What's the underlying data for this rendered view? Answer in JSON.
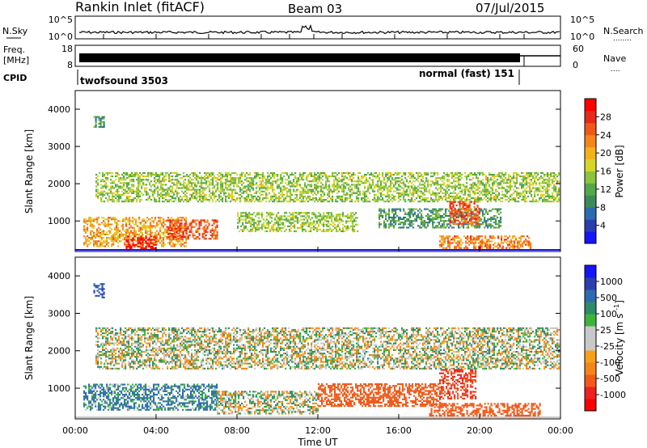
{
  "header": {
    "station": "Rankin Inlet (fitACF)",
    "beam": "Beam 03",
    "date": "07/Jul/2015"
  },
  "nsky_panel": {
    "left_label": "N.Sky",
    "right_label": "N.Search",
    "left_ticks": [
      "10^5",
      "10^0"
    ],
    "right_ticks": [
      "10^5",
      "10^0"
    ],
    "right_legend_marker": "........"
  },
  "freq_panel": {
    "left_label_line1": "Freq.",
    "left_label_line2": "[MHz]",
    "right_label": "Nave",
    "left_ticks": [
      "18",
      "8"
    ],
    "right_ticks": [
      "60",
      "0"
    ],
    "right_legend_marker": "...."
  },
  "cpid_panel": {
    "label": "CPID",
    "mode1": "twofsound 3503",
    "mode2": "normal (fast) 151"
  },
  "colors": {
    "background": "#ffffff",
    "power_scale": [
      "#1414ff",
      "#2a3fae",
      "#2d6bb0",
      "#3d8a58",
      "#53a84a",
      "#8dc43c",
      "#d6d62a",
      "#f3b21a",
      "#f5861a",
      "#f0581a",
      "#e8281a",
      "#ff0000"
    ],
    "velocity_scale": [
      "#ff0000",
      "#ee2020",
      "#f05a1a",
      "#f5851a",
      "#f7a01a",
      "#c8c8c8",
      "#c8c8c8",
      "#3cb43c",
      "#2d8a6a",
      "#2d6bb0",
      "#2a3fae",
      "#1414ff"
    ]
  },
  "chart_data": [
    {
      "type": "heatmap",
      "name": "power",
      "ylabel": "Slant Range [km]",
      "xlabel": "",
      "xlim": [
        0,
        24
      ],
      "ylim": [
        180,
        4500
      ],
      "x_ticks": [
        "00:00",
        "04:00",
        "08:00",
        "12:00",
        "16:00",
        "20:00",
        "00:00"
      ],
      "y_ticks": [
        1000,
        2000,
        3000,
        4000
      ],
      "colorbar": {
        "label": "Power [dB]",
        "ticks": [
          "4",
          "8",
          "12",
          "16",
          "20",
          "24",
          "28"
        ],
        "range": [
          0,
          30
        ]
      },
      "bands": [
        {
          "t0": 1.0,
          "t1": 23.9,
          "r0": 1500,
          "r1": 2300,
          "level": 14
        },
        {
          "t0": 0.4,
          "t1": 5.5,
          "r0": 300,
          "r1": 1100,
          "level": 20
        },
        {
          "t0": 2.5,
          "t1": 4.0,
          "r0": 200,
          "r1": 600,
          "level": 28
        },
        {
          "t0": 4.5,
          "t1": 7.0,
          "r0": 500,
          "r1": 1000,
          "level": 24
        },
        {
          "t0": 8.0,
          "t1": 14.0,
          "r0": 700,
          "r1": 1200,
          "level": 14
        },
        {
          "t0": 15.0,
          "t1": 21.0,
          "r0": 800,
          "r1": 1300,
          "level": 10
        },
        {
          "t0": 18.5,
          "t1": 20.0,
          "r0": 900,
          "r1": 1500,
          "level": 24
        },
        {
          "t0": 18.0,
          "t1": 22.5,
          "r0": 250,
          "r1": 600,
          "level": 22
        },
        {
          "t0": 0.9,
          "t1": 1.4,
          "r0": 3500,
          "r1": 3800,
          "level": 10
        }
      ]
    },
    {
      "type": "heatmap",
      "name": "velocity",
      "ylabel": "Slant Range [km]",
      "xlabel": "Time UT",
      "xlim": [
        0,
        24
      ],
      "ylim": [
        180,
        4500
      ],
      "x_ticks": [
        "00:00",
        "04:00",
        "08:00",
        "12:00",
        "16:00",
        "20:00",
        "00:00"
      ],
      "y_ticks": [
        1000,
        2000,
        3000,
        4000
      ],
      "colorbar": {
        "label": "Velocity [m s^-1]",
        "ticks": [
          "-1000",
          "-500",
          "-100",
          "-25",
          "25",
          "100",
          "500",
          "1000"
        ]
      },
      "bands": [
        {
          "t0": 1.0,
          "t1": 23.9,
          "r0": 1500,
          "r1": 2600,
          "value": 0
        },
        {
          "t0": 0.4,
          "t1": 7.0,
          "r0": 400,
          "r1": 1100,
          "value": 100
        },
        {
          "t0": 7.0,
          "t1": 12.0,
          "r0": 300,
          "r1": 900,
          "value": 0
        },
        {
          "t0": 12.0,
          "t1": 18.0,
          "r0": 500,
          "r1": 1100,
          "value": -300
        },
        {
          "t0": 18.0,
          "t1": 19.8,
          "r0": 700,
          "r1": 1500,
          "value": -500
        },
        {
          "t0": 17.5,
          "t1": 23.0,
          "r0": 200,
          "r1": 600,
          "value": -300
        },
        {
          "t0": 0.9,
          "t1": 1.4,
          "r0": 3400,
          "r1": 3800,
          "value": 500
        }
      ]
    }
  ]
}
